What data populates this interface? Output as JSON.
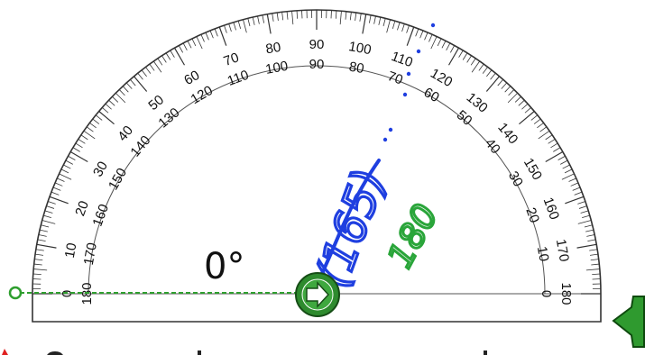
{
  "protractor": {
    "angle_readout": "0°",
    "outer_scale_labels": [
      "180",
      "170",
      "160",
      "150",
      "140",
      "130",
      "120",
      "110",
      "100",
      "90",
      "80",
      "70",
      "60",
      "50",
      "40",
      "30",
      "20",
      "10",
      "0"
    ],
    "inner_scale_labels": [
      "0",
      "10",
      "20",
      "30",
      "40",
      "50",
      "60",
      "70",
      "80",
      "90",
      "100",
      "110",
      "120",
      "130",
      "140",
      "150",
      "160",
      "170",
      "180"
    ],
    "ink_annotation_blue": "(165)",
    "ink_annotation_green": "180",
    "colors": {
      "ink_blue": "#1f3fe0",
      "ink_green": "#2aa53a",
      "baseline_green": "#2e9e2e",
      "center_handle": "#2e8b2e",
      "scale_lines": "#333333"
    }
  }
}
